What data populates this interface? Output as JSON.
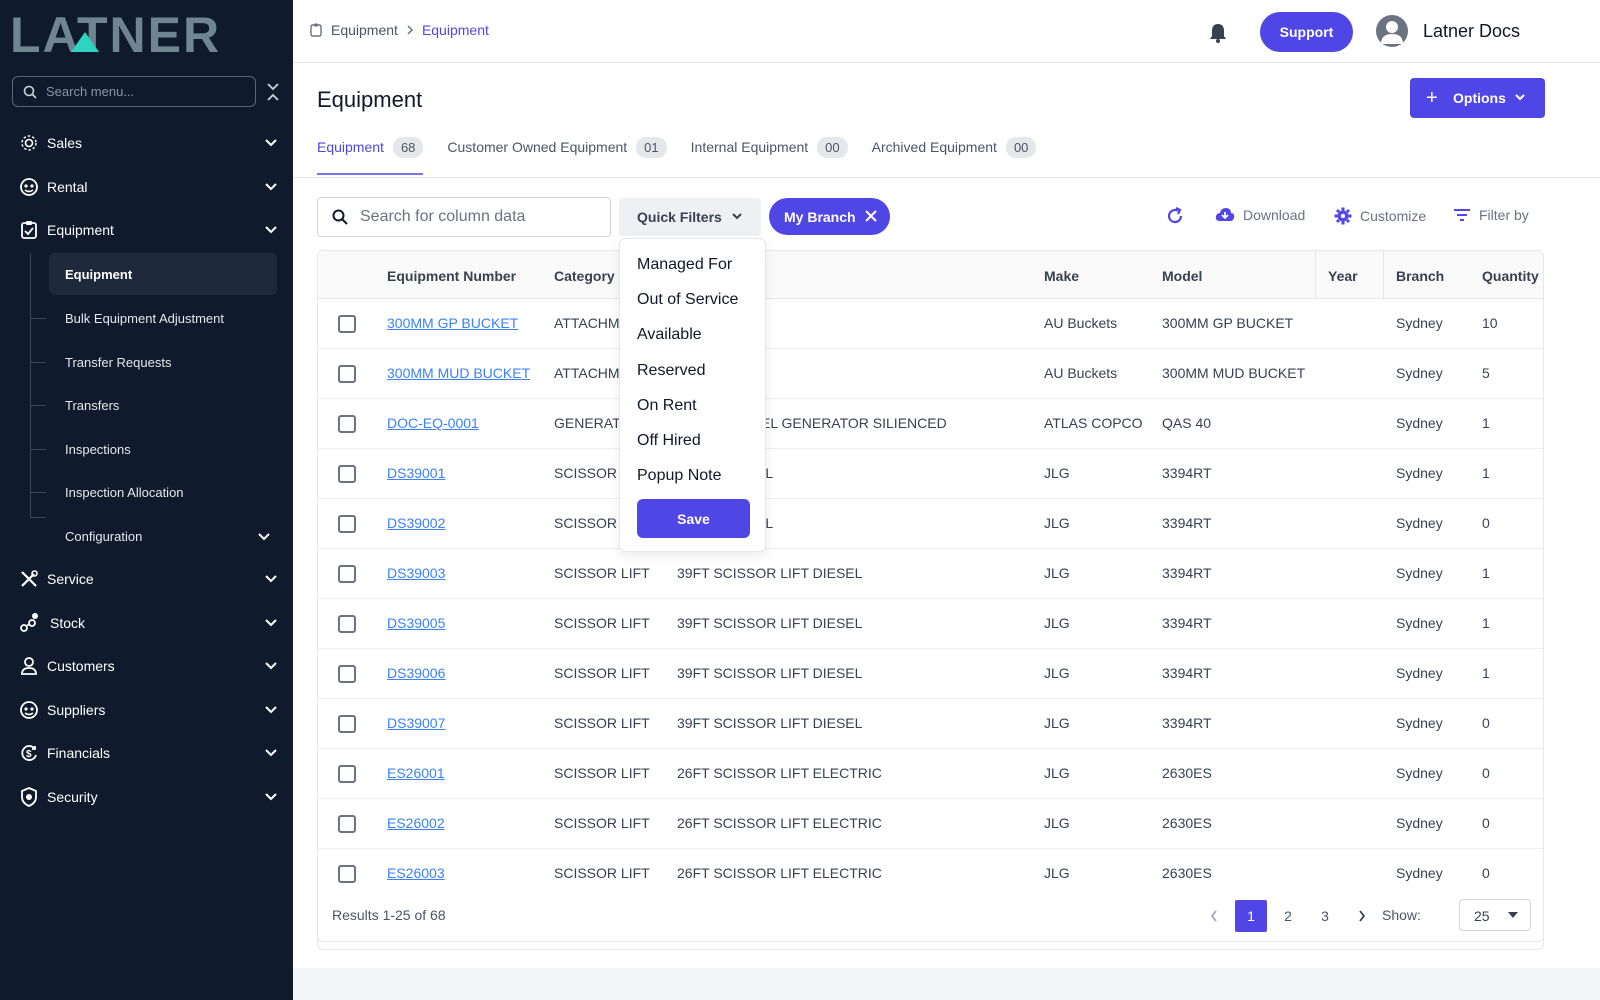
{
  "logo": "LATNER",
  "sidebar": {
    "search_placeholder": "Search menu...",
    "items": [
      {
        "label": "Sales",
        "icon": "gear-cog-icon"
      },
      {
        "label": "Rental",
        "icon": "rental-icon"
      },
      {
        "label": "Equipment",
        "icon": "clipboard-icon"
      },
      {
        "label": "Service",
        "icon": "tools-icon"
      },
      {
        "label": "Stock",
        "icon": "stock-icon"
      },
      {
        "label": "Customers",
        "icon": "person-icon"
      },
      {
        "label": "Suppliers",
        "icon": "supplier-icon"
      },
      {
        "label": "Financials",
        "icon": "dollar-cycle-icon"
      },
      {
        "label": "Security",
        "icon": "shield-icon"
      }
    ],
    "sub_items": [
      {
        "label": "Equipment"
      },
      {
        "label": "Bulk Equipment Adjustment"
      },
      {
        "label": "Transfer Requests"
      },
      {
        "label": "Transfers"
      },
      {
        "label": "Inspections"
      },
      {
        "label": "Inspection Allocation"
      },
      {
        "label": "Configuration"
      }
    ]
  },
  "topbar": {
    "breadcrumb": [
      "Equipment",
      "Equipment"
    ],
    "support_label": "Support",
    "user_name": "Latner Docs"
  },
  "page": {
    "title": "Equipment",
    "options_label": "Options",
    "tabs": [
      {
        "label": "Equipment",
        "count": "68"
      },
      {
        "label": "Customer Owned Equipment",
        "count": "01"
      },
      {
        "label": "Internal Equipment",
        "count": "00"
      },
      {
        "label": "Archived Equipment",
        "count": "00"
      }
    ]
  },
  "toolbar": {
    "search_placeholder": "Search for column data",
    "quick_filters_label": "Quick Filters",
    "chip_label": "My Branch",
    "download_label": "Download",
    "customize_label": "Customize",
    "filter_label": "Filter by"
  },
  "dropdown": {
    "items": [
      "Managed For",
      "Out of Service",
      "Available",
      "Reserved",
      "On Rent",
      "Off Hired",
      "Popup Note"
    ],
    "save_label": "Save"
  },
  "table": {
    "headers": [
      "Equipment Number",
      "Category",
      "Make",
      "Model",
      "Year",
      "Branch",
      "Quantity"
    ],
    "rows": [
      {
        "number": "300MM GP BUCKET",
        "category": "ATTACHM",
        "desc": "UCKET",
        "make": "AU Buckets",
        "model": "300MM GP BUCKET",
        "year": "",
        "branch": "Sydney",
        "qty": "10"
      },
      {
        "number": "300MM MUD BUCKET",
        "category": "ATTACHM",
        "desc": "BUCKET",
        "make": "AU Buckets",
        "model": "300MM MUD BUCKET",
        "year": "",
        "branch": "Sydney",
        "qty": "5"
      },
      {
        "number": "DOC-EQ-0001",
        "category": "GENERATO",
        "desc": "PHASE DIESEL GENERATOR SILIENCED",
        "make": "ATLAS COPCO",
        "model": "QAS 40",
        "year": "",
        "branch": "Sydney",
        "qty": "1"
      },
      {
        "number": "DS39001",
        "category": "SCISSOR L",
        "desc": "R LIFT DIESEL",
        "make": "JLG",
        "model": "3394RT",
        "year": "",
        "branch": "Sydney",
        "qty": "1"
      },
      {
        "number": "DS39002",
        "category": "SCISSOR L",
        "desc": "R LIFT DIESEL",
        "make": "JLG",
        "model": "3394RT",
        "year": "",
        "branch": "Sydney",
        "qty": "0"
      },
      {
        "number": "DS39003",
        "category": "SCISSOR LIFT",
        "desc": "39FT SCISSOR LIFT DIESEL",
        "make": "JLG",
        "model": "3394RT",
        "year": "",
        "branch": "Sydney",
        "qty": "1"
      },
      {
        "number": "DS39005",
        "category": "SCISSOR LIFT",
        "desc": "39FT SCISSOR LIFT DIESEL",
        "make": "JLG",
        "model": "3394RT",
        "year": "",
        "branch": "Sydney",
        "qty": "1"
      },
      {
        "number": "DS39006",
        "category": "SCISSOR LIFT",
        "desc": "39FT SCISSOR LIFT DIESEL",
        "make": "JLG",
        "model": "3394RT",
        "year": "",
        "branch": "Sydney",
        "qty": "1"
      },
      {
        "number": "DS39007",
        "category": "SCISSOR LIFT",
        "desc": "39FT SCISSOR LIFT DIESEL",
        "make": "JLG",
        "model": "3394RT",
        "year": "",
        "branch": "Sydney",
        "qty": "0"
      },
      {
        "number": "ES26001",
        "category": "SCISSOR LIFT",
        "desc": "26FT SCISSOR LIFT ELECTRIC",
        "make": "JLG",
        "model": "2630ES",
        "year": "",
        "branch": "Sydney",
        "qty": "0"
      },
      {
        "number": "ES26002",
        "category": "SCISSOR LIFT",
        "desc": "26FT SCISSOR LIFT ELECTRIC",
        "make": "JLG",
        "model": "2630ES",
        "year": "",
        "branch": "Sydney",
        "qty": "0"
      },
      {
        "number": "ES26003",
        "category": "SCISSOR LIFT",
        "desc": "26FT SCISSOR LIFT ELECTRIC",
        "make": "JLG",
        "model": "2630ES",
        "year": "",
        "branch": "Sydney",
        "qty": "0"
      }
    ]
  },
  "pagination": {
    "results_text": "Results 1-25 of 68",
    "pages": [
      "1",
      "2",
      "3"
    ],
    "current": "1",
    "show_label": "Show:",
    "page_size": "25"
  },
  "colors": {
    "accent": "#4f46e5",
    "sidebar_bg": "#0f1b2d",
    "link": "#3b82f6"
  }
}
